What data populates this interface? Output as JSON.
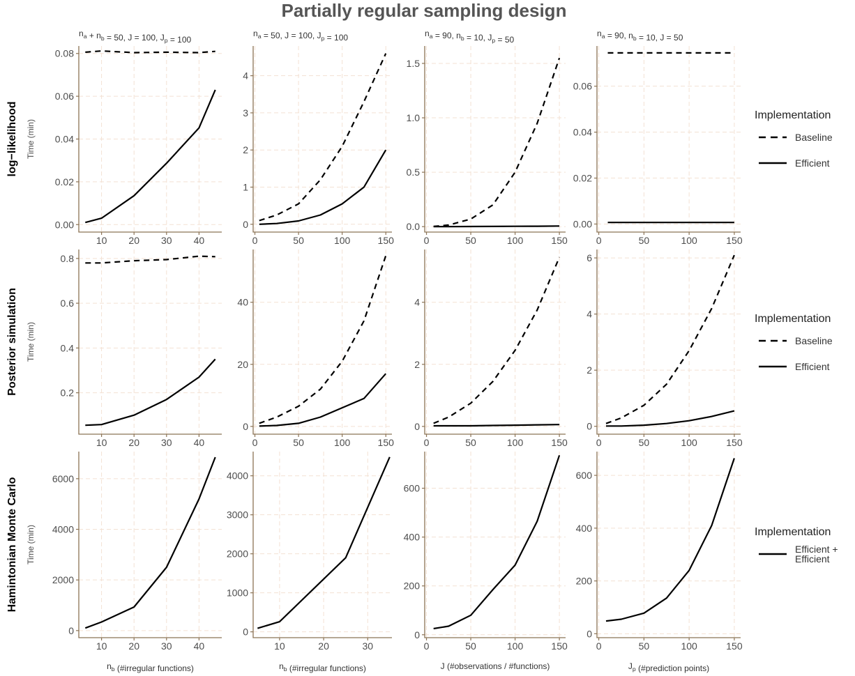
{
  "title": "Partially regular sampling design",
  "column_headers": [
    [
      "n",
      {
        "sub": "a"
      },
      " + n",
      {
        "sub": "b"
      },
      " = 50, J = 100, J",
      {
        "sub": "p"
      },
      " = 100"
    ],
    [
      "n",
      {
        "sub": "a"
      },
      " = 50, J = 100, J",
      {
        "sub": "p"
      },
      " = 100"
    ],
    [
      "n",
      {
        "sub": "a"
      },
      " = 90, n",
      {
        "sub": "b"
      },
      " = 10, J",
      {
        "sub": "p"
      },
      " = 50"
    ],
    [
      "n",
      {
        "sub": "a"
      },
      " = 90, n",
      {
        "sub": "b"
      },
      " = 10, J = 50"
    ]
  ],
  "row_labels": [
    "log−likelihood",
    "Posterior simulation",
    "Hamintonian Monte Carlo"
  ],
  "y_axis_label": "Time (min)",
  "x_axis_labels": [
    [
      "n",
      {
        "sub": "b"
      },
      " (#irregular functions)"
    ],
    [
      "n",
      {
        "sub": "b"
      },
      " (#irregular functions)"
    ],
    [
      "J (#observations / #functions)"
    ],
    [
      "J",
      {
        "sub": "p"
      },
      " (#prediction points)"
    ]
  ],
  "legends": [
    {
      "title": "Implementation",
      "entries": [
        {
          "label": [
            "Baseline"
          ],
          "linetype": "dashed"
        },
        {
          "label": [
            "Efficient"
          ],
          "linetype": "solid"
        }
      ]
    },
    {
      "title": "Implementation",
      "entries": [
        {
          "label": [
            "Baseline"
          ],
          "linetype": "dashed"
        },
        {
          "label": [
            "Efficient"
          ],
          "linetype": "solid"
        }
      ]
    },
    {
      "title": "Implementation",
      "entries": [
        {
          "label": [
            "Efficient +",
            "Efficient"
          ],
          "linetype": "solid"
        }
      ]
    }
  ],
  "colors": {
    "axis": "#8b7355",
    "grid": "#f3e1d3",
    "line": "#000000",
    "title": "#555555"
  },
  "chart_data": {
    "type": "line",
    "panels": [
      {
        "row": 0,
        "col": 0,
        "xlim": [
          3,
          47
        ],
        "ylim": [
          -0.0035,
          0.0835
        ],
        "xticks": [
          10,
          20,
          30,
          40
        ],
        "yticks": [
          0,
          0.02,
          0.04,
          0.06,
          0.08
        ],
        "yticklabels": [
          "0.00",
          "0.02",
          "0.04",
          "0.06",
          "0.08"
        ],
        "series": [
          {
            "name": "Baseline",
            "linetype": "dashed",
            "x": [
              5,
              10,
              20,
              30,
              40,
              45
            ],
            "y": [
              0.0806,
              0.0812,
              0.0804,
              0.0806,
              0.0804,
              0.081
            ]
          },
          {
            "name": "Efficient",
            "linetype": "solid",
            "x": [
              5,
              10,
              20,
              30,
              40,
              45
            ],
            "y": [
              0.001,
              0.003,
              0.0135,
              0.0287,
              0.0452,
              0.063
            ]
          }
        ]
      },
      {
        "row": 0,
        "col": 1,
        "xlim": [
          -2,
          157
        ],
        "ylim": [
          -0.21,
          4.8
        ],
        "xticks": [
          0,
          50,
          100,
          150
        ],
        "yticks": [
          0,
          1,
          2,
          3,
          4
        ],
        "yticklabels": [
          "0",
          "1",
          "2",
          "3",
          "4"
        ],
        "series": [
          {
            "name": "Baseline",
            "linetype": "dashed",
            "x": [
              5,
              25,
              50,
              75,
              100,
              125,
              150
            ],
            "y": [
              0.1,
              0.25,
              0.55,
              1.2,
              2.1,
              3.3,
              4.6
            ]
          },
          {
            "name": "Efficient",
            "linetype": "solid",
            "x": [
              5,
              25,
              50,
              75,
              100,
              125,
              150
            ],
            "y": [
              0.0,
              0.02,
              0.09,
              0.25,
              0.55,
              1.0,
              2.0
            ]
          }
        ]
      },
      {
        "row": 0,
        "col": 2,
        "xlim": [
          -2,
          157
        ],
        "ylim": [
          -0.05,
          1.66
        ],
        "xticks": [
          0,
          50,
          100,
          150
        ],
        "yticks": [
          0,
          0.5,
          1.0,
          1.5
        ],
        "yticklabels": [
          "0.0",
          "0.5",
          "1.0",
          "1.5"
        ],
        "series": [
          {
            "name": "Baseline",
            "linetype": "dashed",
            "x": [
              8,
              25,
              50,
              75,
              100,
              125,
              150
            ],
            "y": [
              0.002,
              0.015,
              0.07,
              0.2,
              0.5,
              0.95,
              1.55
            ]
          },
          {
            "name": "Efficient",
            "linetype": "solid",
            "x": [
              8,
              25,
              50,
              75,
              100,
              125,
              150
            ],
            "y": [
              0.0,
              0.0,
              0.001,
              0.002,
              0.003,
              0.004,
              0.006
            ]
          }
        ]
      },
      {
        "row": 0,
        "col": 3,
        "xlim": [
          -2,
          157
        ],
        "ylim": [
          -0.0035,
          0.0775
        ],
        "xticks": [
          0,
          50,
          100,
          150
        ],
        "yticks": [
          0,
          0.02,
          0.04,
          0.06
        ],
        "yticklabels": [
          "0.00",
          "0.02",
          "0.04",
          "0.06"
        ],
        "series": [
          {
            "name": "Baseline",
            "linetype": "dashed",
            "x": [
              10,
              150
            ],
            "y": [
              0.0745,
              0.0745
            ]
          },
          {
            "name": "Efficient",
            "linetype": "solid",
            "x": [
              10,
              150
            ],
            "y": [
              0.0007,
              0.0007
            ]
          }
        ]
      },
      {
        "row": 1,
        "col": 0,
        "xlim": [
          3,
          47
        ],
        "ylim": [
          0.015,
          0.84
        ],
        "xticks": [
          10,
          20,
          30,
          40
        ],
        "yticks": [
          0.2,
          0.4,
          0.6,
          0.8
        ],
        "yticklabels": [
          "0.2",
          "0.4",
          "0.6",
          "0.8"
        ],
        "series": [
          {
            "name": "Baseline",
            "linetype": "dashed",
            "x": [
              5,
              10,
              20,
              30,
              40,
              45
            ],
            "y": [
              0.78,
              0.78,
              0.79,
              0.795,
              0.81,
              0.808
            ]
          },
          {
            "name": "Efficient",
            "linetype": "solid",
            "x": [
              5,
              10,
              20,
              30,
              40,
              45
            ],
            "y": [
              0.055,
              0.058,
              0.1,
              0.17,
              0.27,
              0.35
            ]
          }
        ]
      },
      {
        "row": 1,
        "col": 1,
        "xlim": [
          -2,
          157
        ],
        "ylim": [
          -2.5,
          57
        ],
        "xticks": [
          0,
          50,
          100,
          150
        ],
        "yticks": [
          0,
          20,
          40
        ],
        "yticklabels": [
          "0",
          "20",
          "40"
        ],
        "series": [
          {
            "name": "Baseline",
            "linetype": "dashed",
            "x": [
              5,
              25,
              50,
              75,
              100,
              125,
              150
            ],
            "y": [
              1.0,
              3.0,
              6.5,
              12.0,
              21.0,
              34.0,
              55.0
            ]
          },
          {
            "name": "Efficient",
            "linetype": "solid",
            "x": [
              5,
              25,
              50,
              75,
              100,
              125,
              150
            ],
            "y": [
              0.1,
              0.3,
              1.0,
              3.0,
              6.0,
              9.0,
              17.0
            ]
          }
        ]
      },
      {
        "row": 1,
        "col": 2,
        "xlim": [
          -2,
          157
        ],
        "ylim": [
          -0.25,
          5.7
        ],
        "xticks": [
          0,
          50,
          100,
          150
        ],
        "yticks": [
          0,
          2,
          4
        ],
        "yticklabels": [
          "0",
          "2",
          "4"
        ],
        "series": [
          {
            "name": "Baseline",
            "linetype": "dashed",
            "x": [
              8,
              25,
              50,
              75,
              100,
              125,
              150
            ],
            "y": [
              0.1,
              0.3,
              0.75,
              1.45,
              2.45,
              3.75,
              5.45
            ]
          },
          {
            "name": "Efficient",
            "linetype": "solid",
            "x": [
              8,
              25,
              50,
              75,
              100,
              125,
              150
            ],
            "y": [
              0.02,
              0.02,
              0.02,
              0.03,
              0.04,
              0.05,
              0.06
            ]
          }
        ]
      },
      {
        "row": 1,
        "col": 3,
        "xlim": [
          -2,
          157
        ],
        "ylim": [
          -0.28,
          6.3
        ],
        "xticks": [
          0,
          50,
          100,
          150
        ],
        "yticks": [
          0,
          2,
          4,
          6
        ],
        "yticklabels": [
          "0",
          "2",
          "4",
          "6"
        ],
        "series": [
          {
            "name": "Baseline",
            "linetype": "dashed",
            "x": [
              8,
              25,
              50,
              75,
              100,
              125,
              150
            ],
            "y": [
              0.1,
              0.3,
              0.75,
              1.5,
              2.7,
              4.2,
              6.1
            ]
          },
          {
            "name": "Efficient",
            "linetype": "solid",
            "x": [
              8,
              25,
              50,
              75,
              100,
              125,
              150
            ],
            "y": [
              0.01,
              0.01,
              0.04,
              0.1,
              0.2,
              0.35,
              0.55
            ]
          }
        ]
      },
      {
        "row": 2,
        "col": 0,
        "xlim": [
          3,
          47
        ],
        "ylim": [
          -280,
          7070
        ],
        "xticks": [
          10,
          20,
          30,
          40
        ],
        "yticks": [
          0,
          2000,
          4000,
          6000
        ],
        "yticklabels": [
          "0",
          "2000",
          "4000",
          "6000"
        ],
        "series": [
          {
            "name": "Efficient + Efficient",
            "linetype": "solid",
            "x": [
              5,
              10,
              20,
              30,
              40,
              45
            ],
            "y": [
              100,
              340,
              930,
              2500,
              5200,
              6850
            ]
          }
        ]
      },
      {
        "row": 2,
        "col": 1,
        "xlim": [
          4,
          35.5
        ],
        "ylim": [
          -150,
          4620
        ],
        "xticks": [
          10,
          20,
          30
        ],
        "yticks": [
          0,
          1000,
          2000,
          3000,
          4000
        ],
        "yticklabels": [
          "0",
          "1000",
          "2000",
          "3000",
          "4000"
        ],
        "series": [
          {
            "name": "Efficient + Efficient",
            "linetype": "solid",
            "x": [
              5,
              10,
              25,
              35
            ],
            "y": [
              90,
              260,
              1900,
              4480
            ]
          }
        ]
      },
      {
        "row": 2,
        "col": 2,
        "xlim": [
          -2,
          157
        ],
        "ylim": [
          -12,
          750
        ],
        "xticks": [
          0,
          50,
          100,
          150
        ],
        "yticks": [
          0,
          200,
          400,
          600
        ],
        "yticklabels": [
          "0",
          "200",
          "400",
          "600"
        ],
        "series": [
          {
            "name": "Efficient + Efficient",
            "linetype": "solid",
            "x": [
              8,
              25,
              50,
              75,
              100,
              125,
              150
            ],
            "y": [
              25,
              35,
              80,
              185,
              285,
              465,
              735
            ]
          }
        ]
      },
      {
        "row": 2,
        "col": 3,
        "xlim": [
          -2,
          157
        ],
        "ylim": [
          -15,
          690
        ],
        "xticks": [
          0,
          50,
          100,
          150
        ],
        "yticks": [
          0,
          200,
          400,
          600
        ],
        "yticklabels": [
          "0",
          "200",
          "400",
          "600"
        ],
        "series": [
          {
            "name": "Efficient + Efficient",
            "linetype": "solid",
            "x": [
              8,
              25,
              50,
              75,
              100,
              125,
              150
            ],
            "y": [
              48,
              55,
              78,
              135,
              240,
              410,
              665
            ]
          }
        ]
      }
    ]
  }
}
